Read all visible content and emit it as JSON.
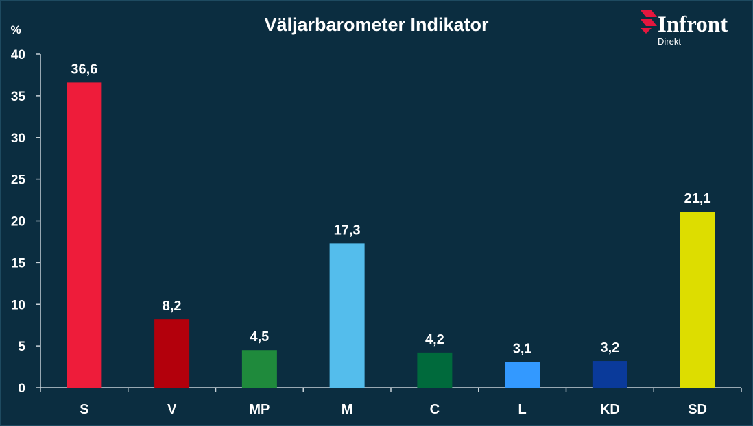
{
  "chart_data": {
    "type": "bar",
    "title": "Väljarbarometer Indikator",
    "ylabel": "%",
    "xlabel": "",
    "categories": [
      "S",
      "V",
      "MP",
      "M",
      "C",
      "L",
      "KD",
      "SD"
    ],
    "values": [
      36.6,
      8.2,
      4.5,
      17.3,
      4.2,
      3.1,
      3.2,
      21.1
    ],
    "value_labels": [
      "36,6",
      "8,2",
      "4,5",
      "17,3",
      "4,2",
      "3,1",
      "3,2",
      "21,1"
    ],
    "colors": [
      "#ee1c3a",
      "#b3000c",
      "#1f8a3c",
      "#54bdec",
      "#006a3c",
      "#3399ff",
      "#0a3a9a",
      "#dddd00"
    ],
    "ylim": [
      0,
      40
    ],
    "yticks": [
      0,
      5,
      10,
      15,
      20,
      25,
      30,
      35,
      40
    ],
    "grid": false,
    "legend": "none"
  },
  "logo": {
    "brand": "Infront",
    "sub": "Direkt",
    "mark_color": "#e4173e"
  },
  "colors": {
    "background": "#0b2d40",
    "axis": "#c8d2d8",
    "text": "#ffffff"
  }
}
